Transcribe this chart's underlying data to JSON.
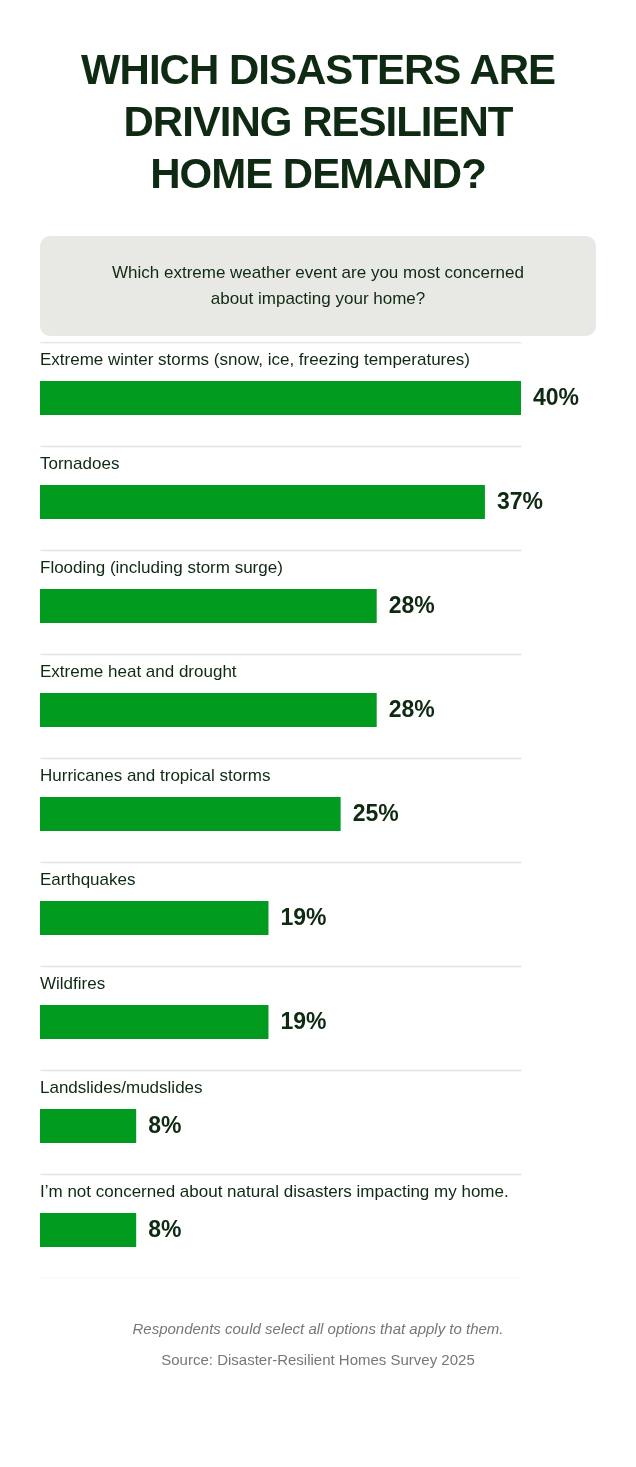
{
  "chart_data": {
    "type": "bar",
    "orientation": "horizontal",
    "title": "WHICH DISASTERS ARE DRIVING RESILIENT HOME DEMAND?",
    "subtitle": "Which extreme weather event are you most concerned about impacting your home?",
    "categories": [
      "Extreme winter storms (snow, ice, freezing temperatures)",
      "Tornadoes",
      "Flooding (including storm surge)",
      "Extreme heat and drought",
      "Hurricanes and tropical storms",
      "Earthquakes",
      "Wildfires",
      "Landslides/mudslides",
      "I’m not concerned about natural disasters impacting my home."
    ],
    "values": [
      40,
      37,
      28,
      28,
      25,
      19,
      19,
      8,
      8
    ],
    "value_labels": [
      "40%",
      "37%",
      "28%",
      "28%",
      "25%",
      "19%",
      "19%",
      "8%",
      "8%"
    ],
    "color": "#009b1f",
    "grid": "y",
    "annotations": [
      "Respondents could select all options that apply to them.",
      "Source: Disaster-Resilient Homes Survey 2025"
    ]
  }
}
